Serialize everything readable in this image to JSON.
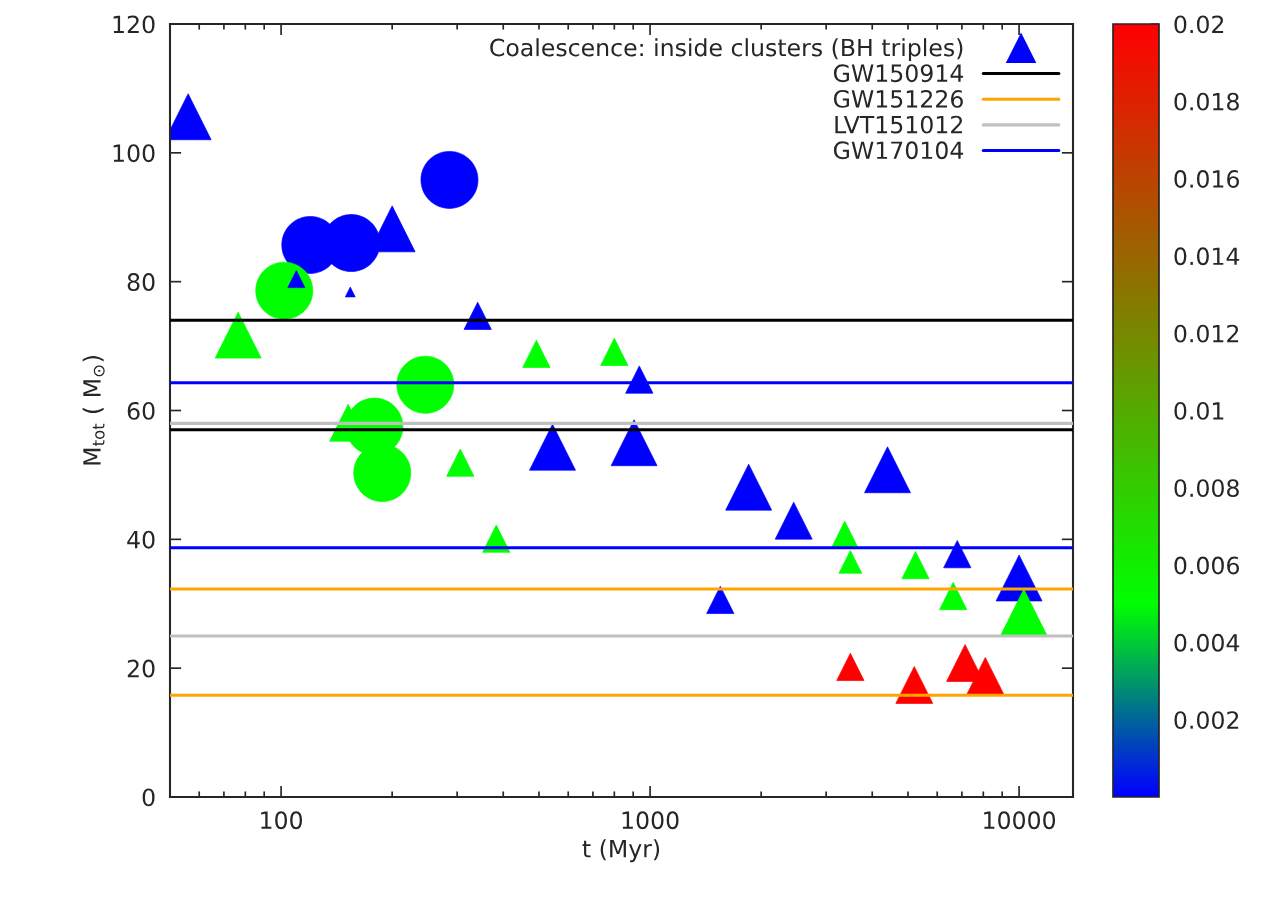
{
  "chart_data": {
    "type": "scatter",
    "xlabel": "t (Myr)",
    "ylabel": "M$_{tot}$ ( M$_{⊙}$)",
    "log": "x",
    "xlim": [
      50,
      14000
    ],
    "xticks": [
      100,
      1000,
      10000
    ],
    "ylim": [
      0,
      120
    ],
    "yticks": [
      0,
      20,
      40,
      60,
      80,
      100,
      120
    ],
    "clim": [
      0,
      0.02
    ],
    "cticks": [
      0.002,
      0.004,
      0.006,
      0.008,
      0.01,
      0.012,
      0.014,
      0.016,
      0.018,
      0.02
    ],
    "grid": false,
    "legend": "top right",
    "series": [
      {
        "marker": "circle",
        "x": [
          120,
          155,
          286,
          102,
          246,
          179,
          188
        ],
        "values": [
          85.7,
          86,
          95.8,
          78.6,
          64,
          57.5,
          50.3
        ],
        "sizes": [
          1,
          1,
          1,
          1,
          1,
          1,
          1
        ],
        "cvalues": [
          0,
          0,
          0,
          0.005,
          0.005,
          0.005,
          0.005
        ],
        "colors": [
          "#0000ff",
          "#0000ff",
          "#0000ff",
          "#00ff00",
          "#00ff00",
          "#00ff00",
          "#00ff00"
        ]
      },
      {
        "marker": "triangle",
        "name": "Coalescence: inside clusters (BH triples)",
        "x": [
          56,
          110,
          154,
          76.5,
          200,
          341,
          152,
          306,
          383,
          492,
          800,
          935,
          544,
          905,
          1550,
          1850,
          2450,
          3370,
          3490,
          5240,
          6800,
          6630,
          10000,
          10300,
          4400,
          3490,
          5200,
          7140,
          8100
        ],
        "values": [
          105.6,
          80.4,
          78.4,
          71.7,
          88.2,
          74.7,
          58.1,
          51.9,
          40.1,
          68.8,
          69.1,
          64.8,
          54.3,
          55,
          30.6,
          48.1,
          42.9,
          40.7,
          36.5,
          36,
          37.7,
          31.2,
          34,
          28.7,
          50.8,
          20.2,
          17.4,
          20.8,
          18.8
        ],
        "sizes": [
          0.414,
          0.057,
          0.019,
          0.414,
          0.414,
          0.146,
          0.268,
          0.146,
          0.146,
          0.146,
          0.146,
          0.146,
          0.414,
          0.414,
          0.146,
          0.414,
          0.268,
          0.146,
          0.102,
          0.146,
          0.146,
          0.146,
          0.414,
          0.414,
          0.414,
          0.146,
          0.268,
          0.268,
          0.268
        ],
        "cvalues": [
          0,
          0,
          0,
          0.005,
          0,
          0,
          0.005,
          0.005,
          0.005,
          0.005,
          0.005,
          0,
          0,
          0,
          0,
          0,
          0,
          0.005,
          0.005,
          0.005,
          0,
          0.005,
          0,
          0.005,
          0,
          0.02,
          0.02,
          0.02,
          0.02
        ],
        "colors": [
          "#0000ff",
          "#0000ff",
          "#0000ff",
          "#00ff00",
          "#0000ff",
          "#0000ff",
          "#00ff00",
          "#00ff00",
          "#00ff00",
          "#00ff00",
          "#00ff00",
          "#0000ff",
          "#0000ff",
          "#0000ff",
          "#0000ff",
          "#0000ff",
          "#0000ff",
          "#00ff00",
          "#00ff00",
          "#00ff00",
          "#0000ff",
          "#00ff00",
          "#0000ff",
          "#00ff00",
          "#0000ff",
          "#ff0000",
          "#ff0000",
          "#ff0000",
          "#ff0000"
        ]
      }
    ],
    "ref_lines": [
      {
        "axis": "y",
        "value": 74,
        "label": "GW150914",
        "color": "#000000"
      },
      {
        "axis": "y",
        "value": 57,
        "color": "#000000"
      },
      {
        "axis": "y",
        "value": 32.3,
        "label": "GW151226",
        "color": "#ffa500"
      },
      {
        "axis": "y",
        "value": 15.8,
        "color": "#ffa500"
      },
      {
        "axis": "y",
        "value": 58,
        "label": "LVT151012",
        "color": "#c0c0c0"
      },
      {
        "axis": "y",
        "value": 25,
        "color": "#c0c0c0"
      },
      {
        "axis": "y",
        "value": 64.3,
        "label": "GW170104",
        "color": "#0000ff"
      },
      {
        "axis": "y",
        "value": 38.7,
        "color": "#0000ff"
      }
    ]
  }
}
